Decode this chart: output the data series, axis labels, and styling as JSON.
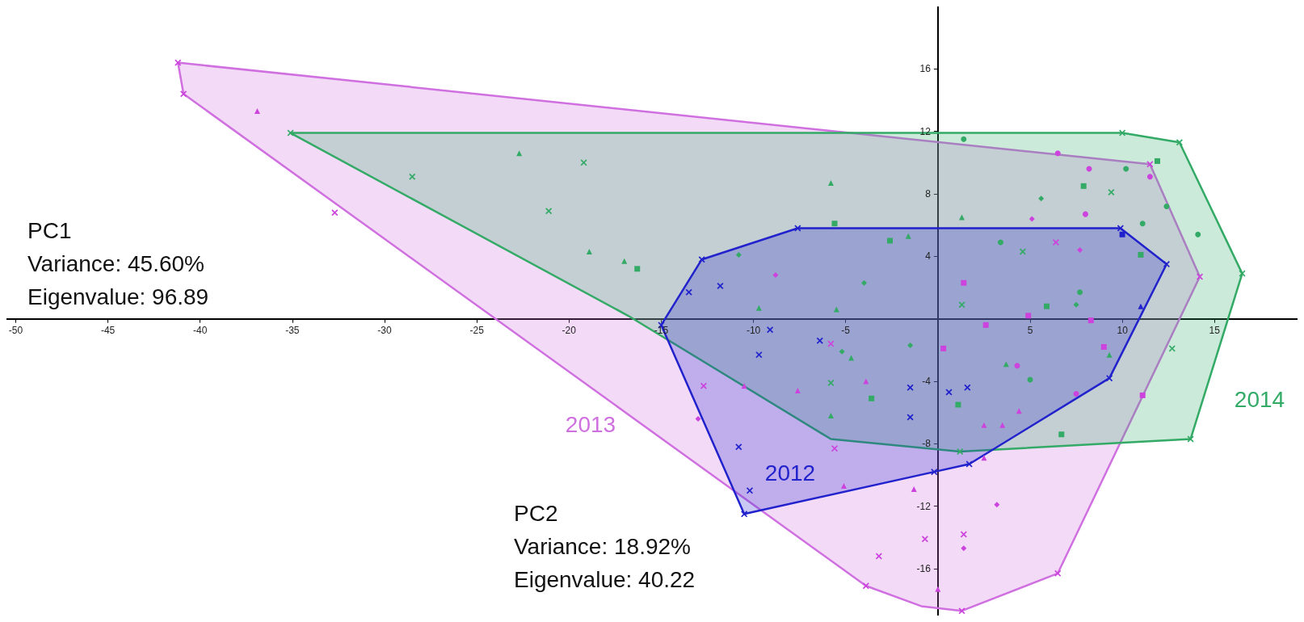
{
  "chart_data": {
    "type": "scatter",
    "xlim": [
      -50.5,
      19.5
    ],
    "ylim": [
      -19,
      20
    ],
    "xticks": [
      -50,
      -45,
      -40,
      -35,
      -30,
      -25,
      -20,
      -15,
      -10,
      -5,
      5,
      10,
      15
    ],
    "yticks": [
      -16,
      -12,
      -8,
      -4,
      4,
      8,
      12,
      16
    ],
    "grid": false,
    "legend": false,
    "annotations": [
      "PC1\nVariance: 45.60%\nEigenvalue: 96.89",
      "PC2\nVariance: 18.92%\nEigenvalue: 40.22"
    ],
    "series": [
      {
        "type": "area",
        "name": "2013",
        "color": "#d070e0",
        "x": [
          -41.2,
          11.5,
          14.2,
          6.5,
          1.3,
          -0.9,
          -3.9,
          -40.9
        ],
        "values": [
          16.4,
          9.9,
          2.7,
          -16.3,
          -18.7,
          -18.4,
          -17.1,
          14.4
        ]
      },
      {
        "type": "area",
        "name": "2014",
        "color": "#33aa66",
        "x": [
          -35.1,
          10,
          13.1,
          16.5,
          13.7,
          1.2,
          -5.8,
          -16.8
        ],
        "values": [
          11.9,
          11.9,
          11.3,
          2.9,
          -7.7,
          -8.5,
          -7.7,
          0.2
        ]
      },
      {
        "type": "area",
        "name": "2012",
        "color": "#2222cc",
        "x": [
          -7.6,
          9.9,
          12.4,
          9.3,
          1.7,
          -0.2,
          -10.5,
          -15,
          -12.8
        ],
        "values": [
          5.8,
          5.8,
          3.5,
          -3.8,
          -9.3,
          -9.8,
          -12.5,
          -0.4,
          3.8
        ]
      },
      {
        "color": "#33aa66",
        "marker": "triangle",
        "x": [
          -22.7,
          -18.9,
          -17,
          -5.8,
          -1.6,
          -9.7,
          -5.5,
          1.3,
          3.7,
          9.3,
          -5.8,
          -4.7
        ],
        "values": [
          10.6,
          4.3,
          3.7,
          8.7,
          5.3,
          0.7,
          0.6,
          6.5,
          -2.9,
          -2.3,
          -6.2,
          -2.5
        ]
      },
      {
        "color": "#33aa66",
        "marker": "cross",
        "x": [
          -28.5,
          -21.1,
          -19.2,
          9.4,
          12.7,
          -5.8,
          1.3,
          4.6,
          10,
          13.1,
          16.5,
          13.7,
          -35.1,
          1.2
        ],
        "values": [
          9.1,
          6.9,
          10,
          8.1,
          -1.9,
          -4.1,
          0.9,
          4.3,
          11.9,
          11.3,
          2.9,
          -7.7,
          11.9,
          -8.5
        ]
      },
      {
        "color": "#33aa66",
        "marker": "square",
        "x": [
          -16.3,
          -5.6,
          -2.6,
          7.9,
          11,
          11.9,
          -3.6,
          1.1,
          6.7,
          5.9
        ],
        "values": [
          3.2,
          6.1,
          5,
          8.5,
          4.1,
          10.1,
          -5.1,
          -5.5,
          -7.4,
          0.8
        ]
      },
      {
        "color": "#33aa66",
        "marker": "circle",
        "x": [
          1.4,
          10.2,
          14.1,
          3.4,
          7.7,
          5,
          11.1,
          12.4
        ],
        "values": [
          11.5,
          9.6,
          5.4,
          4.9,
          1.7,
          -3.9,
          6.1,
          7.2
        ]
      },
      {
        "color": "#33aa66",
        "marker": "diamond",
        "x": [
          -10.8,
          -4,
          -5.2,
          5.6,
          7.5,
          -1.5
        ],
        "values": [
          4.1,
          2.3,
          -2.1,
          7.7,
          0.9,
          -1.7
        ]
      },
      {
        "color": "#cc44dd",
        "marker": "triangle",
        "x": [
          -36.9,
          -7.6,
          -10.5,
          -3.9,
          -5.1,
          -1.3,
          2.5,
          4.4,
          2.5,
          0,
          3.5
        ],
        "values": [
          13.3,
          -4.6,
          -4.3,
          -4,
          -10.7,
          -10.9,
          -6.8,
          -5.9,
          -8.9,
          -17.3,
          -6.8
        ]
      },
      {
        "color": "#cc44dd",
        "marker": "cross",
        "x": [
          -41.2,
          -40.9,
          -32.7,
          -3.9,
          -3.2,
          -0.7,
          1.4,
          6.5,
          11.5,
          14.2,
          1.3,
          -5.6,
          -12.7,
          -5.8,
          6.4
        ],
        "values": [
          16.4,
          14.4,
          6.8,
          -17.1,
          -15.2,
          -14.1,
          -13.8,
          -16.3,
          9.9,
          2.7,
          -18.7,
          -8.3,
          -4.3,
          -1.6,
          4.9
        ]
      },
      {
        "color": "#cc44dd",
        "marker": "square",
        "x": [
          9,
          11.1,
          1.4,
          4.9,
          8.3,
          0.3,
          2.6
        ],
        "values": [
          -1.8,
          -4.9,
          2.3,
          0.2,
          -0.1,
          -1.9,
          -0.4
        ]
      },
      {
        "color": "#cc44dd",
        "marker": "circle",
        "x": [
          6.5,
          8.2,
          11.5,
          8,
          4.3,
          7.5
        ],
        "values": [
          10.6,
          9.6,
          9.1,
          6.7,
          -3,
          -4.8
        ]
      },
      {
        "color": "#cc44dd",
        "marker": "diamond",
        "x": [
          -8.8,
          5.1,
          7.7,
          3.2,
          1.4,
          -13
        ],
        "values": [
          2.8,
          6.4,
          4.4,
          -11.9,
          -14.7,
          -6.4
        ]
      },
      {
        "color": "#2222cc",
        "marker": "cross",
        "x": [
          -7.6,
          9.9,
          12.4,
          9.3,
          1.7,
          -0.2,
          -10.5,
          -15,
          -12.8,
          -13.5,
          -11.8,
          -9.1,
          -9.7,
          -6.4,
          -1.5,
          0.6,
          1.6,
          -1.5,
          -10.8,
          -10.2
        ],
        "values": [
          5.8,
          5.8,
          3.5,
          -3.8,
          -9.3,
          -9.8,
          -12.5,
          -0.4,
          3.8,
          1.7,
          2.1,
          -0.7,
          -2.3,
          -1.4,
          -4.4,
          -4.7,
          -4.4,
          -6.3,
          -8.2,
          -11
        ]
      },
      {
        "color": "#2222cc",
        "marker": "triangle",
        "x": [
          11
        ],
        "values": [
          0.8
        ]
      },
      {
        "color": "#2222cc",
        "marker": "square",
        "x": [
          10
        ],
        "values": [
          5.4
        ]
      }
    ]
  }
}
